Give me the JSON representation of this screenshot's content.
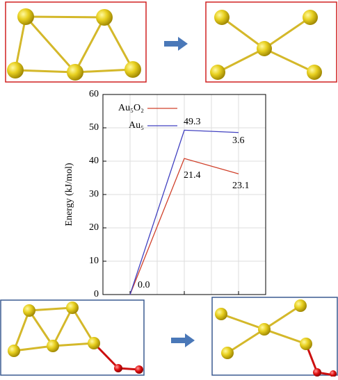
{
  "chart_data": {
    "type": "line",
    "y_label": "Energy (kJ/mol)",
    "categories": [
      null,
      null,
      null
    ],
    "series": [
      {
        "name": "Au₅O₂",
        "color": "#d0402a",
        "values": [
          0,
          40.8,
          36.2
        ]
      },
      {
        "name": "Au₅",
        "color": "#4040c0",
        "values": [
          0,
          49.3,
          48.6
        ]
      }
    ],
    "annotations": [
      "0.0",
      "49.3",
      "3.6",
      "21.4",
      "23.1"
    ],
    "ylim": [
      0,
      60
    ],
    "yticks": [
      0,
      10,
      20,
      30,
      40,
      50,
      60
    ],
    "grid": true,
    "legend": "upper left"
  }
}
